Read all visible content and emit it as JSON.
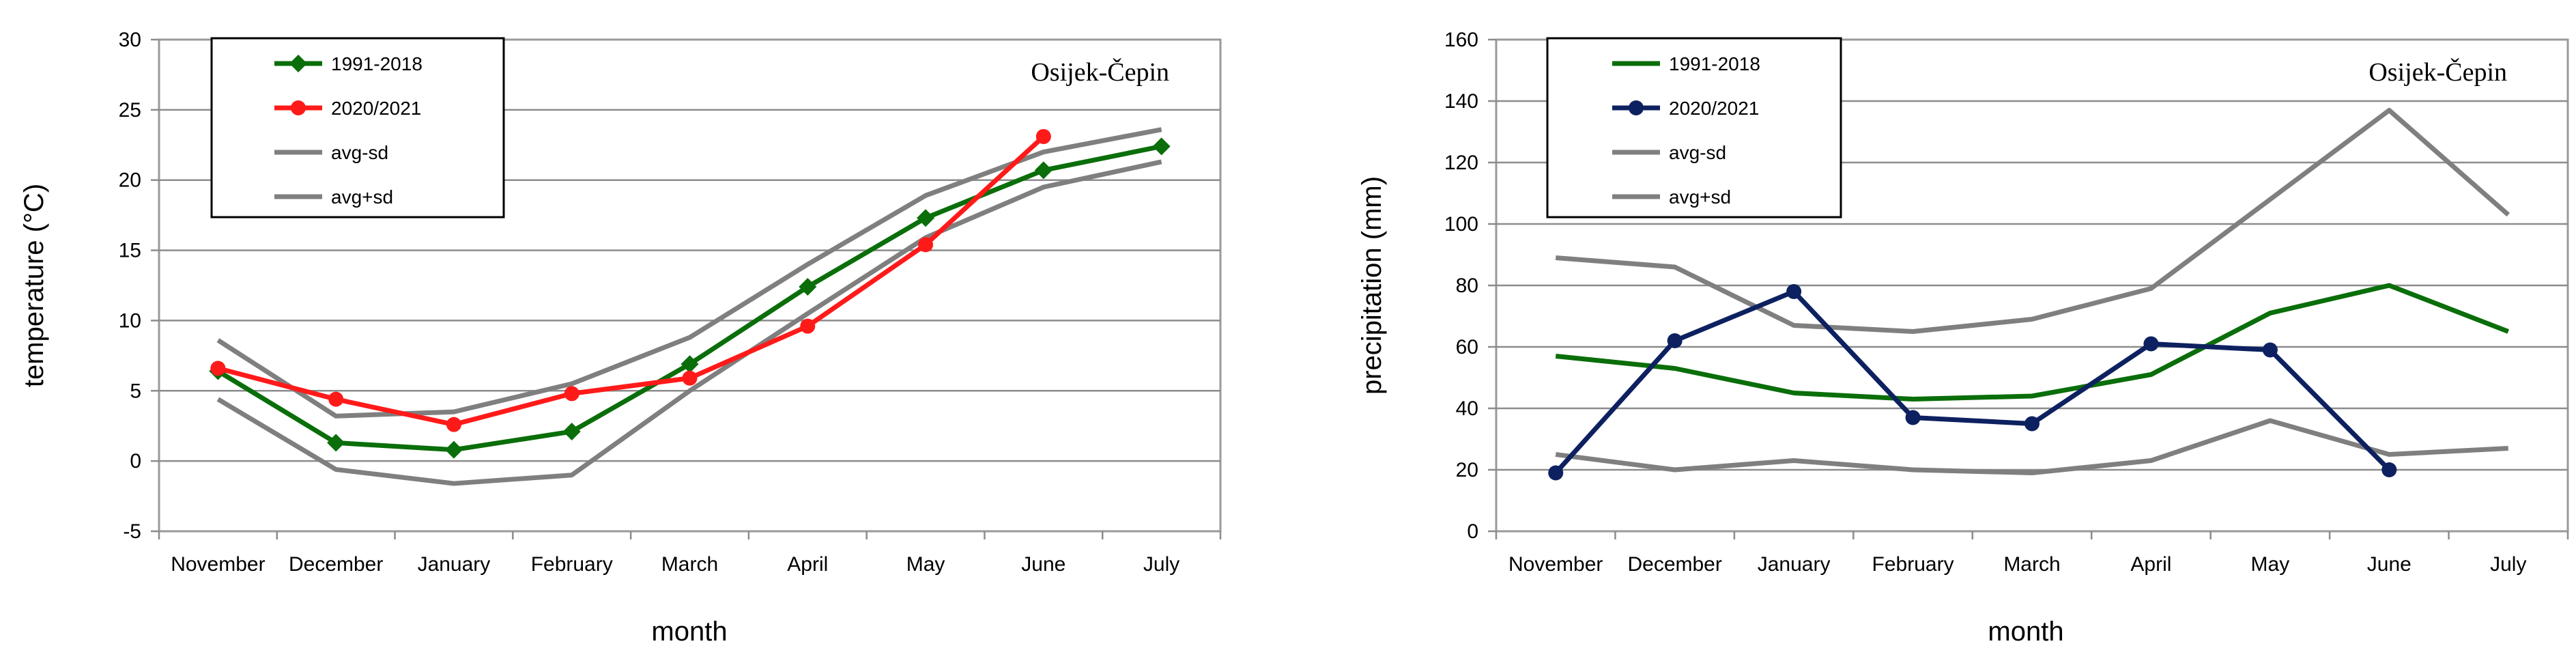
{
  "chart_data": [
    {
      "type": "line",
      "annotation": "Osijek-Čepin",
      "xlabel": "month",
      "ylabel": "temperature (°C)",
      "categories": [
        "November",
        "December",
        "January",
        "February",
        "March",
        "April",
        "May",
        "June",
        "July"
      ],
      "ylim": [
        -5,
        30
      ],
      "yticks": [
        "-5",
        "0",
        "5",
        "10",
        "15",
        "20",
        "25",
        "30"
      ],
      "grid": true,
      "legend_position": "top-left",
      "series": [
        {
          "name": "1991-2018",
          "color": "#0a6e0a",
          "marker": "diamond",
          "values": [
            6.4,
            1.3,
            0.8,
            2.1,
            6.9,
            12.4,
            17.3,
            20.7,
            22.4
          ]
        },
        {
          "name": "2020/2021",
          "color": "#ff1a1a",
          "marker": "circle",
          "values": [
            6.6,
            4.4,
            2.6,
            4.8,
            5.9,
            9.6,
            15.4,
            23.1,
            null
          ]
        },
        {
          "name": "avg-sd",
          "color": "#7f7f7f",
          "marker": "none",
          "values": [
            4.4,
            -0.6,
            -1.6,
            -1.0,
            5.0,
            10.5,
            15.9,
            19.5,
            21.3
          ]
        },
        {
          "name": "avg+sd",
          "color": "#7f7f7f",
          "marker": "none",
          "values": [
            8.6,
            3.2,
            3.5,
            5.5,
            8.8,
            14.0,
            18.9,
            22.0,
            23.6
          ]
        }
      ]
    },
    {
      "type": "line",
      "annotation": "Osijek-Čepin",
      "xlabel": "month",
      "ylabel": "precipitation (mm)",
      "categories": [
        "November",
        "December",
        "January",
        "February",
        "March",
        "April",
        "May",
        "June",
        "July"
      ],
      "ylim": [
        0,
        160
      ],
      "yticks": [
        "0",
        "20",
        "40",
        "60",
        "80",
        "100",
        "120",
        "140",
        "160"
      ],
      "grid": true,
      "legend_position": "top-left",
      "series": [
        {
          "name": "1991-2018",
          "color": "#0a6e0a",
          "marker": "none",
          "values": [
            57,
            53,
            45,
            43,
            44,
            51,
            71,
            80,
            65
          ]
        },
        {
          "name": "2020/2021",
          "color": "#0d2160",
          "marker": "circle",
          "values": [
            19,
            62,
            78,
            37,
            35,
            61,
            59,
            20,
            null
          ]
        },
        {
          "name": "avg-sd",
          "color": "#7f7f7f",
          "marker": "none",
          "values": [
            25,
            20,
            23,
            20,
            19,
            23,
            36,
            25,
            27
          ]
        },
        {
          "name": "avg+sd",
          "color": "#7f7f7f",
          "marker": "none",
          "values": [
            89,
            86,
            67,
            65,
            69,
            79,
            108,
            137,
            103
          ]
        }
      ]
    }
  ]
}
